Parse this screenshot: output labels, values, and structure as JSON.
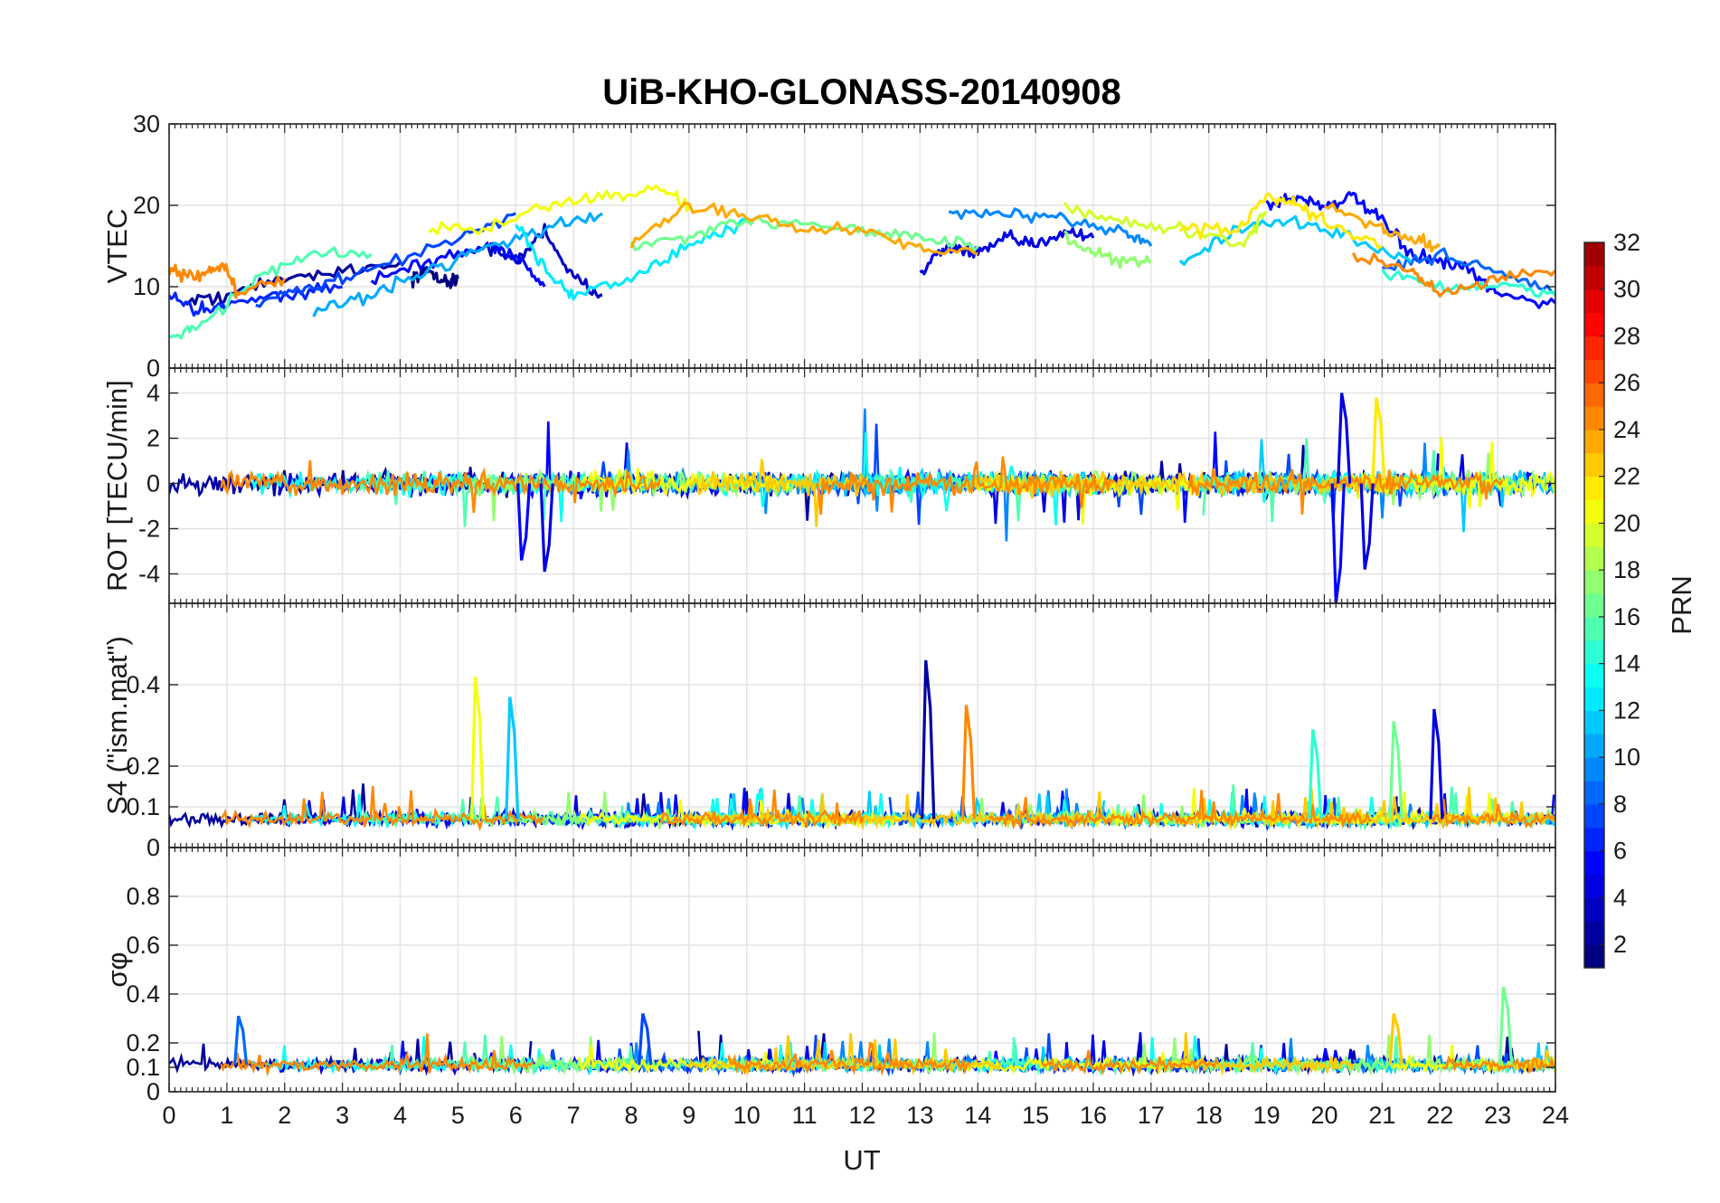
{
  "chart_data": {
    "type": "line",
    "title": "UiB-KHO-GLONASS-20140908",
    "xlabel": "UT",
    "xlim": [
      0,
      24
    ],
    "x_ticks": [
      "0",
      "1",
      "2",
      "3",
      "4",
      "5",
      "6",
      "7",
      "8",
      "9",
      "10",
      "11",
      "12",
      "13",
      "14",
      "15",
      "16",
      "17",
      "18",
      "19",
      "20",
      "21",
      "22",
      "23",
      "24"
    ],
    "grid": true,
    "colorbar": {
      "label": "PRN",
      "range": [
        1,
        32
      ],
      "ticks": [
        "2",
        "4",
        "6",
        "8",
        "10",
        "12",
        "14",
        "16",
        "18",
        "20",
        "22",
        "24",
        "26",
        "28",
        "30",
        "32"
      ],
      "colormap": "jet",
      "position": "right"
    },
    "panels": [
      {
        "id": "vtec",
        "ylabel": "VTEC",
        "ylim": [
          0,
          30
        ],
        "y_ticks": [
          "0",
          "10",
          "20",
          "30"
        ],
        "series": [
          {
            "prn": 1,
            "x": [
              4.2,
              4.5,
              4.8,
              5.0
            ],
            "y": [
              11,
              12,
              10.5,
              11
            ]
          },
          {
            "prn": 2,
            "x": [
              0.3,
              1.0,
              2.0,
              3.0,
              4.0
            ],
            "y": [
              8,
              9,
              11,
              12,
              13
            ]
          },
          {
            "prn": 3,
            "x": [
              5.5,
              6.0,
              6.5,
              7.0,
              7.5
            ],
            "y": [
              15,
              13,
              17,
              11,
              9
            ]
          },
          {
            "prn": 4,
            "x": [
              13.0,
              13.5,
              14.0,
              14.5,
              15.0,
              15.5,
              16.0
            ],
            "y": [
              12,
              15,
              14,
              16,
              15,
              17,
              16
            ]
          },
          {
            "prn": 5,
            "x": [
              3.5,
              4.5,
              5.5,
              6.0,
              6.5
            ],
            "y": [
              11,
              13,
              15,
              14,
              10
            ]
          },
          {
            "prn": 5,
            "x": [
              19.0,
              19.5,
              20.0,
              20.5,
              21.0,
              21.5,
              22.0,
              22.5,
              23.0,
              24.0
            ],
            "y": [
              20,
              21,
              20,
              21,
              18,
              14,
              13,
              12,
              9,
              8
            ]
          },
          {
            "prn": 6,
            "x": [
              0.0,
              0.5,
              1.0,
              2.0,
              3.0
            ],
            "y": [
              9,
              7,
              8,
              9,
              10
            ]
          },
          {
            "prn": 7,
            "x": [
              1.5,
              2.5,
              3.5,
              5.0,
              6.0
            ],
            "y": [
              8,
              10,
              12,
              16,
              19
            ]
          },
          {
            "prn": 8,
            "x": [
              21.0,
              22.0,
              23.0,
              24.0
            ],
            "y": [
              12,
              14,
              12,
              9
            ]
          },
          {
            "prn": 9,
            "x": [
              13.5,
              14.5,
              15.5,
              16.5,
              17.0
            ],
            "y": [
              19,
              19,
              18,
              17,
              15
            ]
          },
          {
            "prn": 10,
            "x": [
              2.5,
              3.5,
              4.5,
              5.5,
              6.5,
              7.5
            ],
            "y": [
              7,
              9,
              12,
              15,
              17,
              19
            ]
          },
          {
            "prn": 11,
            "x": [
              17.5,
              18.5,
              19.5,
              20.5,
              21.5
            ],
            "y": [
              13,
              17,
              18,
              16,
              13
            ]
          },
          {
            "prn": 12,
            "x": [
              6.0,
              6.5,
              7.0,
              8.0,
              9.0,
              10.0
            ],
            "y": [
              18,
              12,
              9,
              11,
              15,
              18
            ]
          },
          {
            "prn": 14,
            "x": [
              21.0,
              22.0,
              23.0,
              24.0
            ],
            "y": [
              12,
              10,
              10,
              9
            ]
          },
          {
            "prn": 15,
            "x": [
              0.0,
              0.5,
              1.5,
              2.5,
              3.5
            ],
            "y": [
              4,
              5,
              11,
              14,
              14
            ]
          },
          {
            "prn": 16,
            "x": [
              8.0,
              9.0,
              10.0,
              11.0,
              12.0,
              13.0,
              14.0
            ],
            "y": [
              15,
              16,
              18,
              18,
              17,
              16,
              15
            ]
          },
          {
            "prn": 17,
            "x": [
              15.5,
              16.0,
              16.5,
              17.0
            ],
            "y": [
              16,
              14,
              13,
              13
            ]
          },
          {
            "prn": 19,
            "x": [
              15.5,
              16.5,
              17.5,
              18.5,
              19.0
            ],
            "y": [
              20,
              18,
              17,
              15,
              19
            ]
          },
          {
            "prn": 20,
            "x": [
              4.5,
              5.5,
              6.5,
              7.5,
              8.5,
              9.0
            ],
            "y": [
              17,
              17,
              20,
              21,
              22,
              20
            ]
          },
          {
            "prn": 21,
            "x": [
              17.5,
              18.5,
              19.0,
              19.5,
              20.0,
              21.0
            ],
            "y": [
              17,
              17,
              21,
              20,
              18,
              15
            ]
          },
          {
            "prn": 23,
            "x": [
              8.0,
              9.0,
              10.0,
              11.0,
              12.0,
              13.0,
              14.0
            ],
            "y": [
              15,
              20,
              19,
              17,
              17,
              15,
              14
            ]
          },
          {
            "prn": 23,
            "x": [
              20.0,
              21.0,
              21.5,
              22.0
            ],
            "y": [
              20,
              17,
              16,
              15
            ]
          },
          {
            "prn": 24,
            "x": [
              0.0,
              0.5,
              0.9,
              1.2,
              2.0
            ],
            "y": [
              12,
              11,
              13,
              9,
              11
            ]
          },
          {
            "prn": 24,
            "x": [
              20.5,
              21.5,
              22.0,
              23.0,
              24.0
            ],
            "y": [
              14,
              12,
              9,
              11,
              12
            ]
          }
        ]
      },
      {
        "id": "rot",
        "ylabel": "ROT [TECU/min]",
        "ylim": [
          -5.3,
          5.1
        ],
        "y_ticks": [
          "-4",
          "-2",
          "0",
          "2",
          "4"
        ],
        "spikes": [
          {
            "prn": 5,
            "x": 6.1,
            "y": -3.4
          },
          {
            "prn": 4,
            "x": 6.5,
            "y": -3.9
          },
          {
            "prn": 4,
            "x": 20.3,
            "y": 4.0
          },
          {
            "prn": 5,
            "x": 20.2,
            "y": -5.3
          },
          {
            "prn": 21,
            "x": 20.9,
            "y": 3.8
          },
          {
            "prn": 4,
            "x": 20.7,
            "y": -3.8
          }
        ]
      },
      {
        "id": "s4",
        "ylabel": "S4 (\"ism.mat\")",
        "ylim": [
          0,
          0.6
        ],
        "y_ticks": [
          "0",
          "0.1",
          "0.2",
          "0.4"
        ],
        "spikes": [
          {
            "prn": 20,
            "x": 5.3,
            "y": 0.42
          },
          {
            "prn": 11,
            "x": 5.9,
            "y": 0.37
          },
          {
            "prn": 2,
            "x": 13.1,
            "y": 0.46
          },
          {
            "prn": 24,
            "x": 13.8,
            "y": 0.35
          },
          {
            "prn": 14,
            "x": 19.8,
            "y": 0.29
          },
          {
            "prn": 4,
            "x": 21.9,
            "y": 0.34
          },
          {
            "prn": 16,
            "x": 21.2,
            "y": 0.31
          }
        ]
      },
      {
        "id": "sigma_phi",
        "ylabel": "σφ",
        "ylim": [
          0,
          1
        ],
        "y_ticks": [
          "0",
          "0.1",
          "0.2",
          "0.4",
          "0.6",
          "0.8"
        ],
        "spikes": [
          {
            "prn": 8,
            "x": 1.2,
            "y": 0.31
          },
          {
            "prn": 7,
            "x": 8.2,
            "y": 0.32
          },
          {
            "prn": 22,
            "x": 21.2,
            "y": 0.32
          },
          {
            "prn": 16,
            "x": 23.1,
            "y": 0.43
          }
        ]
      }
    ]
  }
}
